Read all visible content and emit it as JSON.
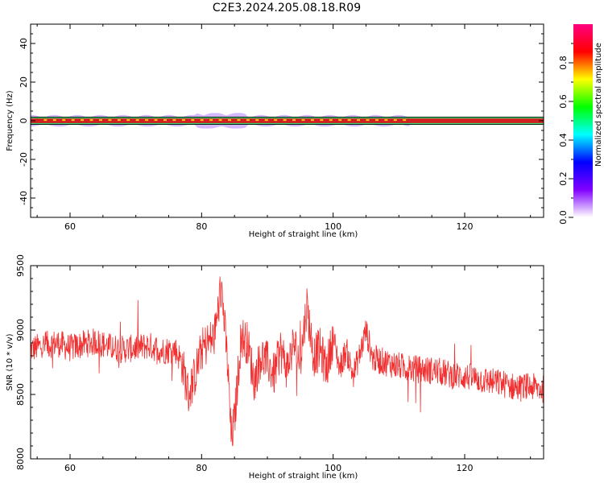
{
  "figure": {
    "title": "C2E3.2024.205.08.18.R09"
  },
  "chart_data": [
    {
      "type": "heatmap",
      "xlabel": "Height of straight line (km)",
      "ylabel": "Frequency (Hz)",
      "xlim": [
        54,
        132
      ],
      "ylim": [
        -50,
        50
      ],
      "xticks": [
        60,
        80,
        100,
        120
      ],
      "yticks": [
        -40,
        -20,
        0,
        20,
        40
      ],
      "colorbar": {
        "label": "Normalized spectral amplitude",
        "range": [
          0,
          1
        ],
        "ticks": [
          0.0,
          0.2,
          0.4,
          0.6,
          0.8
        ],
        "colors": [
          "#ffffff",
          "#8000ff",
          "#0000ff",
          "#00ffff",
          "#00ff00",
          "#ffff00",
          "#ff0000",
          "#ff0080"
        ]
      },
      "band": {
        "center_frequency": 0,
        "core_halfwidth": 1.2,
        "halo_halfwidth_max": 4,
        "core_color": "#d02020",
        "halo_color": "#a060ff",
        "mid_color": "#20e060"
      }
    },
    {
      "type": "line",
      "xlabel": "Height of straight line (km)",
      "ylabel": "SNR (10 * v/v)",
      "xlim": [
        54,
        132
      ],
      "ylim": [
        8000,
        9500
      ],
      "xticks": [
        60,
        80,
        100,
        120
      ],
      "yticks": [
        8000,
        8500,
        9000,
        9500
      ],
      "series": [
        {
          "color": "#f03030",
          "x": [
            54,
            56,
            58,
            60,
            62,
            64,
            66,
            68,
            70,
            72,
            74,
            76,
            77,
            78,
            79,
            80,
            81,
            82,
            83,
            84,
            84.5,
            85,
            86,
            87,
            88,
            89,
            90,
            91,
            92,
            93,
            94,
            95,
            96,
            97,
            98,
            99,
            100,
            101,
            102,
            103,
            104,
            105,
            106,
            108,
            110,
            112,
            114,
            116,
            118,
            120,
            122,
            124,
            126,
            128,
            130,
            132
          ],
          "y": [
            8850,
            8880,
            8900,
            8860,
            8890,
            8910,
            8870,
            8850,
            8860,
            8880,
            8840,
            8850,
            8750,
            8500,
            8650,
            8850,
            8900,
            8950,
            9350,
            8700,
            8150,
            8300,
            8950,
            8900,
            8600,
            8800,
            8750,
            8650,
            8850,
            8700,
            8900,
            8750,
            9200,
            8800,
            8850,
            8700,
            8950,
            8700,
            8850,
            8650,
            8800,
            9000,
            8780,
            8750,
            8720,
            8700,
            8690,
            8680,
            8650,
            8640,
            8620,
            8600,
            8580,
            8550,
            8560,
            8540
          ]
        }
      ]
    }
  ]
}
